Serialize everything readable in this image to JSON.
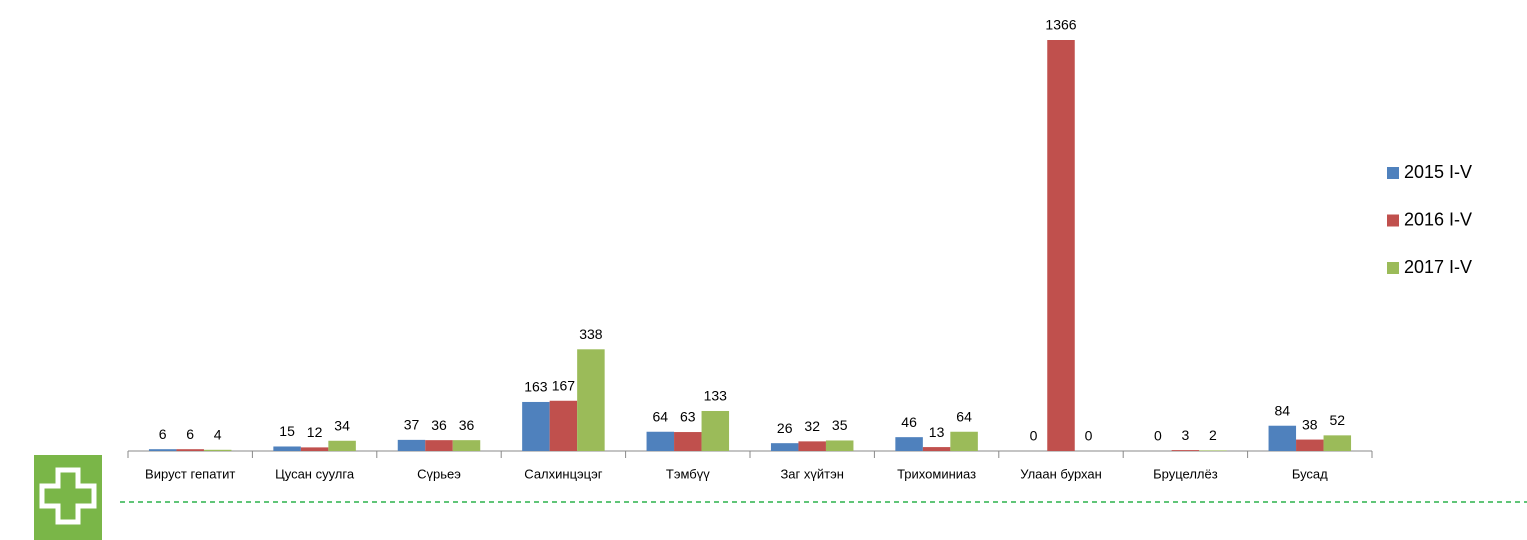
{
  "chart_data": {
    "type": "bar",
    "categories": [
      "Вируст гепатит",
      "Цусан суулга",
      "Сүрьеэ",
      "Салхинцэцэг",
      "Тэмбүү",
      "Заг хүйтэн",
      "Трихоминиаз",
      "Улаан бурхан",
      "Бруцеллёз",
      "Бусад"
    ],
    "series": [
      {
        "name": "2015 I-V",
        "color": "#4f81bd",
        "values": [
          6,
          15,
          37,
          163,
          64,
          26,
          46,
          0,
          0,
          84
        ]
      },
      {
        "name": "2016 I-V",
        "color": "#c0504d",
        "values": [
          6,
          12,
          36,
          167,
          63,
          32,
          13,
          1366,
          3,
          38
        ]
      },
      {
        "name": "2017 I-V",
        "color": "#9bbb59",
        "values": [
          4,
          34,
          36,
          338,
          133,
          35,
          64,
          0,
          2,
          52
        ]
      }
    ],
    "ylim": [
      0,
      1366
    ],
    "legend": "right"
  }
}
